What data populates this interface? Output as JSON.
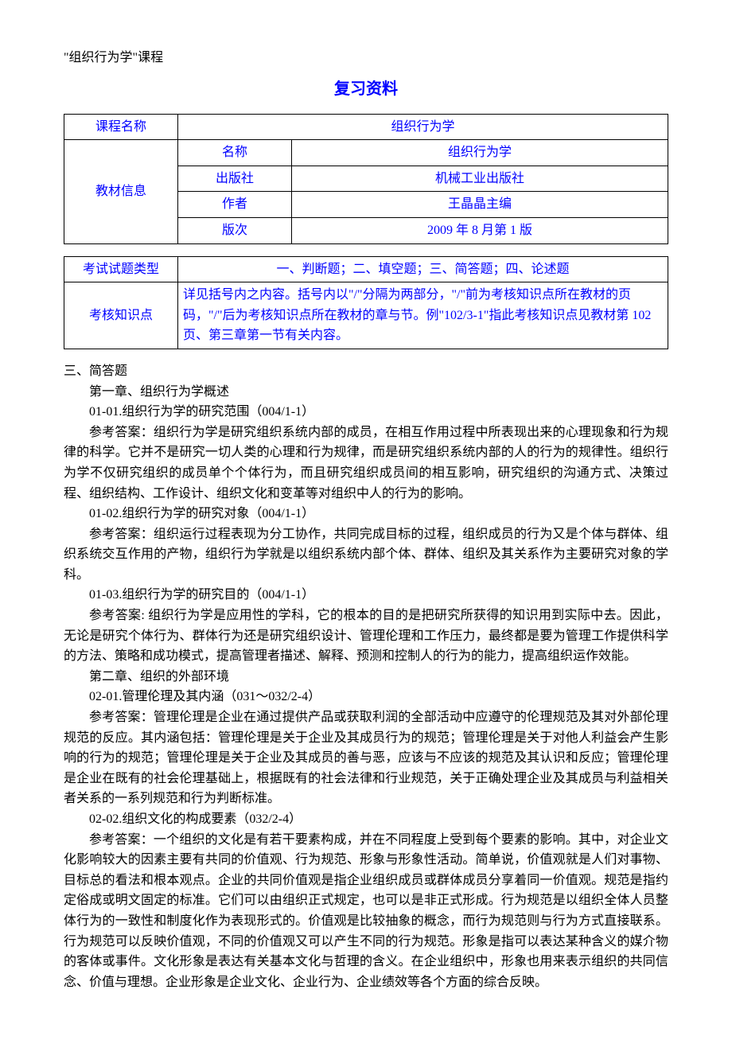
{
  "course_label": "\"组织行为学\"课程",
  "title": "复习资料",
  "table1": {
    "row1_label": "课程名称",
    "row1_value": "组织行为学",
    "row2_label": "教材信息",
    "sub_rows": [
      {
        "label": "名称",
        "value": "组织行为学"
      },
      {
        "label": "出版社",
        "value": "机械工业出版社"
      },
      {
        "label": "作者",
        "value": "王晶晶主编"
      },
      {
        "label": "版次",
        "value": "2009 年 8 月第 1 版"
      }
    ]
  },
  "table2": {
    "row1_label": "考试试题类型",
    "row1_value": "一、判断题；二、填空题；三、简答题；四、论述题",
    "row2_label": "考核知识点",
    "row2_value": "详见括号内之内容。括号内以\"/\"分隔为两部分，\"/\"前为考核知识点所在教材的页码，\"/\"后为考核知识点所在教材的章与节。例\"102/3-1\"指此考核知识点见教材第 102 页、第三章第一节有关内容。"
  },
  "section_heading": "三、简答题",
  "chapter1": "第一章、组织行为学概述",
  "q01_01_title": "01-01.组织行为学的研究范围（004/1-1）",
  "q01_01_answer": "参考答案：组织行为学是研究组织系统内部的成员，在相互作用过程中所表现出来的心理现象和行为规律的科学。它并不是研究一切人类的心理和行为规律，而是研究组织系统内部的人的行为的规律性。组织行为学不仅研究组织的成员单个个体行为，而且研究组织成员间的相互影响，研究组织的沟通方式、决策过程、组织结构、工作设计、组织文化和变革等对组织中人的行为的影响。",
  "q01_02_title": "01-02.组织行为学的研究对象（004/1-1）",
  "q01_02_answer": "参考答案：组织运行过程表现为分工协作，共同完成目标的过程，组织成员的行为又是个体与群体、组织系统交互作用的产物，组织行为学就是以组织系统内部个体、群体、组织及其关系作为主要研究对象的学科。",
  "q01_03_title": "01-03.组织行为学的研究目的（004/1-1）",
  "q01_03_answer": "参考答案: 组织行为学是应用性的学科，它的根本的目的是把研究所获得的知识用到实际中去。因此，无论是研究个体行为、群体行为还是研究组织设计、管理伦理和工作压力，最终都是要为管理工作提供科学的方法、策略和成功模式，提高管理者描述、解释、预测和控制人的行为的能力，提高组织运作效能。",
  "chapter2": "第二章、组织的外部环境",
  "q02_01_title": "02-01.管理伦理及其内涵（031～032/2-4）",
  "q02_01_answer": "参考答案：管理伦理是企业在通过提供产品或获取利润的全部活动中应遵守的伦理规范及其对外部伦理规范的反应。其内涵包括：管理伦理是关于企业及其成员行为的规范；管理伦理是关于对他人利益会产生影响的行为的规范；管理伦理是关于企业及其成员的善与恶，应该与不应该的规范及其认识和反应；管理伦理是企业在既有的社会伦理基础上，根据既有的社会法律和行业规范，关于正确处理企业及其成员与利益相关者关系的一系列规范和行为判断标准。",
  "q02_02_title": "02-02.组织文化的构成要素（032/2-4）",
  "q02_02_answer": "参考答案：一个组织的文化是有若干要素构成，并在不同程度上受到每个要素的影响。其中，对企业文化影响较大的因素主要有共同的价值观、行为规范、形象与形象性活动。简单说，价值观就是人们对事物、目标总的看法和根本观点。企业的共同价值观是指企业组织成员或群体成员分享着同一价值观。规范是指约定俗成或明文固定的标准。它们可以由组织正式规定，也可以是非正式形成。行为规范是以组织全体人员整体行为的一致性和制度化作为表现形式的。价值观是比较抽象的概念，而行为规范则与行为方式直接联系。行为规范可以反映价值观，不同的价值观又可以产生不同的行为规范。形象是指可以表达某种含义的媒介物的客体或事件。文化形象是表达有关基本文化与哲理的含义。在企业组织中，形象也用来表示组织的共同信念、价值与理想。企业形象是企业文化、企业行为、企业绩效等各个方面的综合反映。"
}
